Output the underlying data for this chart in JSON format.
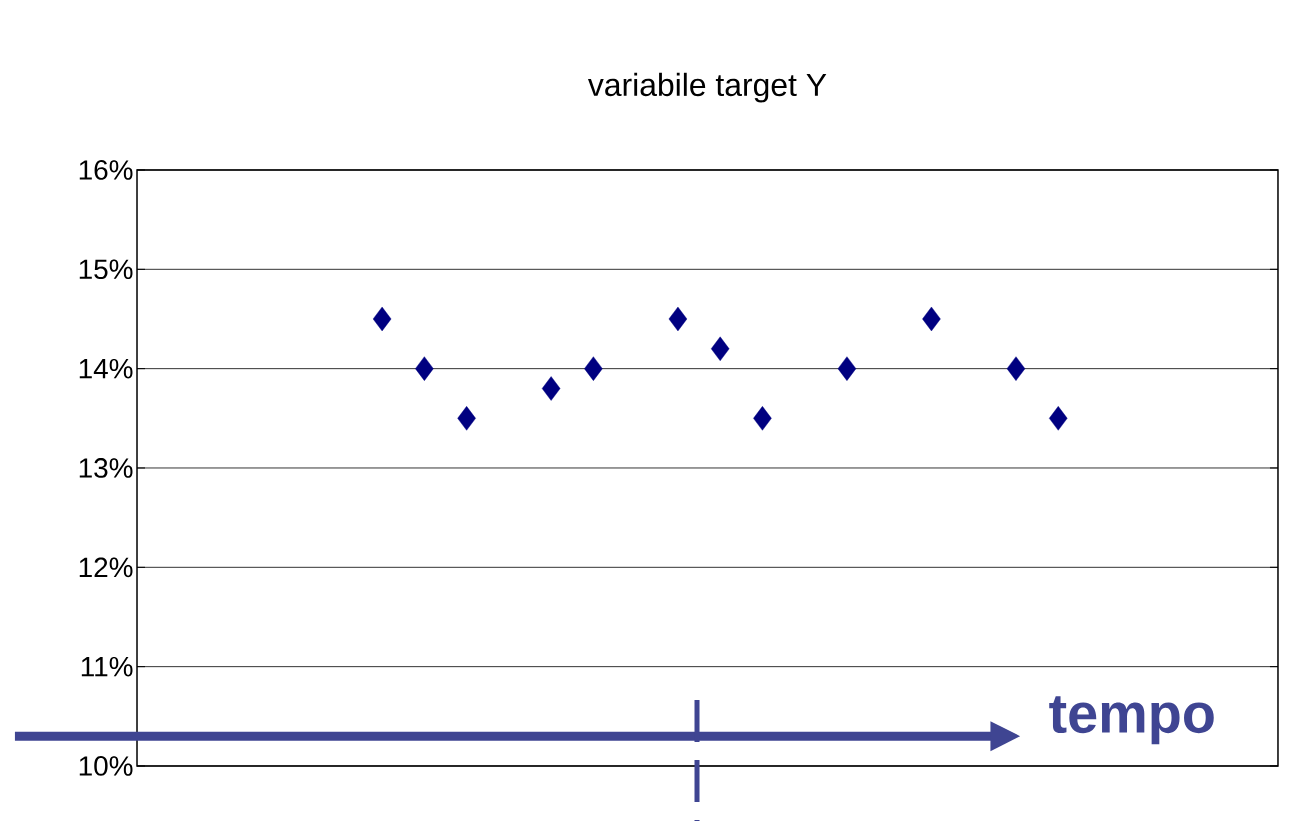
{
  "chart_data": {
    "type": "scatter",
    "title": "variabile target Y",
    "categories": [
      null,
      null,
      null,
      null,
      null,
      null,
      null,
      null,
      null,
      null,
      null,
      null,
      null,
      null,
      null,
      null,
      null,
      null,
      null,
      null,
      null,
      null,
      null,
      null,
      null,
      null,
      null
    ],
    "values": [
      null,
      null,
      null,
      null,
      null,
      14.5,
      14,
      13.5,
      null,
      13.8,
      14,
      null,
      14.5,
      14.2,
      13.5,
      null,
      14,
      null,
      14.5,
      null,
      14,
      13.5,
      null,
      null,
      null,
      null,
      null
    ],
    "color": "#000080",
    "marker": "diamond",
    "ylim": [
      10,
      16
    ],
    "yticks": [
      {
        "value": 10,
        "label": "10%"
      },
      {
        "value": 11,
        "label": "11%"
      },
      {
        "value": 12,
        "label": "12%"
      },
      {
        "value": 13,
        "label": "13%"
      },
      {
        "value": 14,
        "label": "14%"
      },
      {
        "value": 15,
        "label": "15%"
      },
      {
        "value": 16,
        "label": "16%"
      }
    ],
    "grid": "y",
    "ref_lines": [
      {
        "axis": "y",
        "value": 10.3,
        "label": "tempo",
        "color": "#3f4592"
      }
    ]
  }
}
